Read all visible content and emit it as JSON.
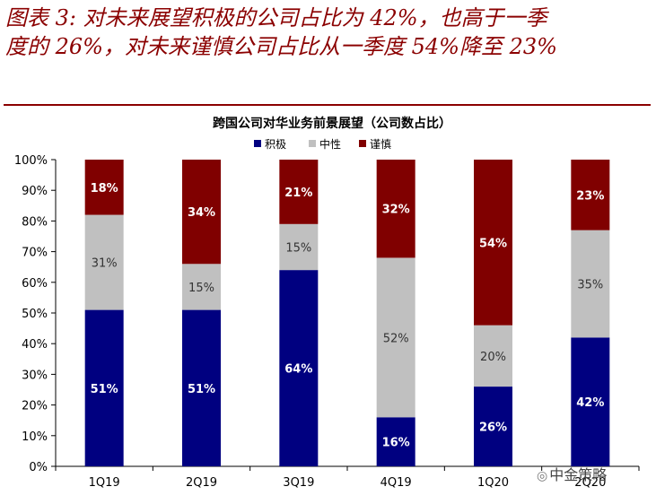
{
  "heading": {
    "line1": "图表 3:  对未来展望积极的公司占比为 42%，也高于一季",
    "line2": "度的 26%，对未来谨慎公司占比从一季度 54%降至 23%"
  },
  "watermark": {
    "text": "中金策略",
    "icon": "wechat-icon"
  },
  "chart_data": {
    "type": "bar",
    "stacked": true,
    "title": "跨国公司对华业务前景展望（公司数占比）",
    "categories": [
      "1Q19",
      "2Q19",
      "3Q19",
      "4Q19",
      "1Q20",
      "2Q20"
    ],
    "series": [
      {
        "name": "积极",
        "color": "#000080",
        "values": [
          51,
          51,
          64,
          16,
          26,
          42
        ],
        "labels": [
          "51%",
          "51%",
          "64%",
          "16%",
          "26%",
          "42%"
        ]
      },
      {
        "name": "中性",
        "color": "#c0c0c0",
        "values": [
          31,
          15,
          15,
          52,
          20,
          35
        ],
        "labels": [
          "31%",
          "15%",
          "15%",
          "52%",
          "20%",
          "35%"
        ]
      },
      {
        "name": "谨慎",
        "color": "#800000",
        "values": [
          18,
          34,
          21,
          32,
          54,
          23
        ],
        "labels": [
          "18%",
          "34%",
          "21%",
          "32%",
          "54%",
          "23%"
        ]
      }
    ],
    "ylim": [
      0,
      100
    ],
    "yticks": [
      "0%",
      "10%",
      "20%",
      "30%",
      "40%",
      "50%",
      "60%",
      "70%",
      "80%",
      "90%",
      "100%"
    ],
    "legend_position": "top",
    "grid": false
  }
}
